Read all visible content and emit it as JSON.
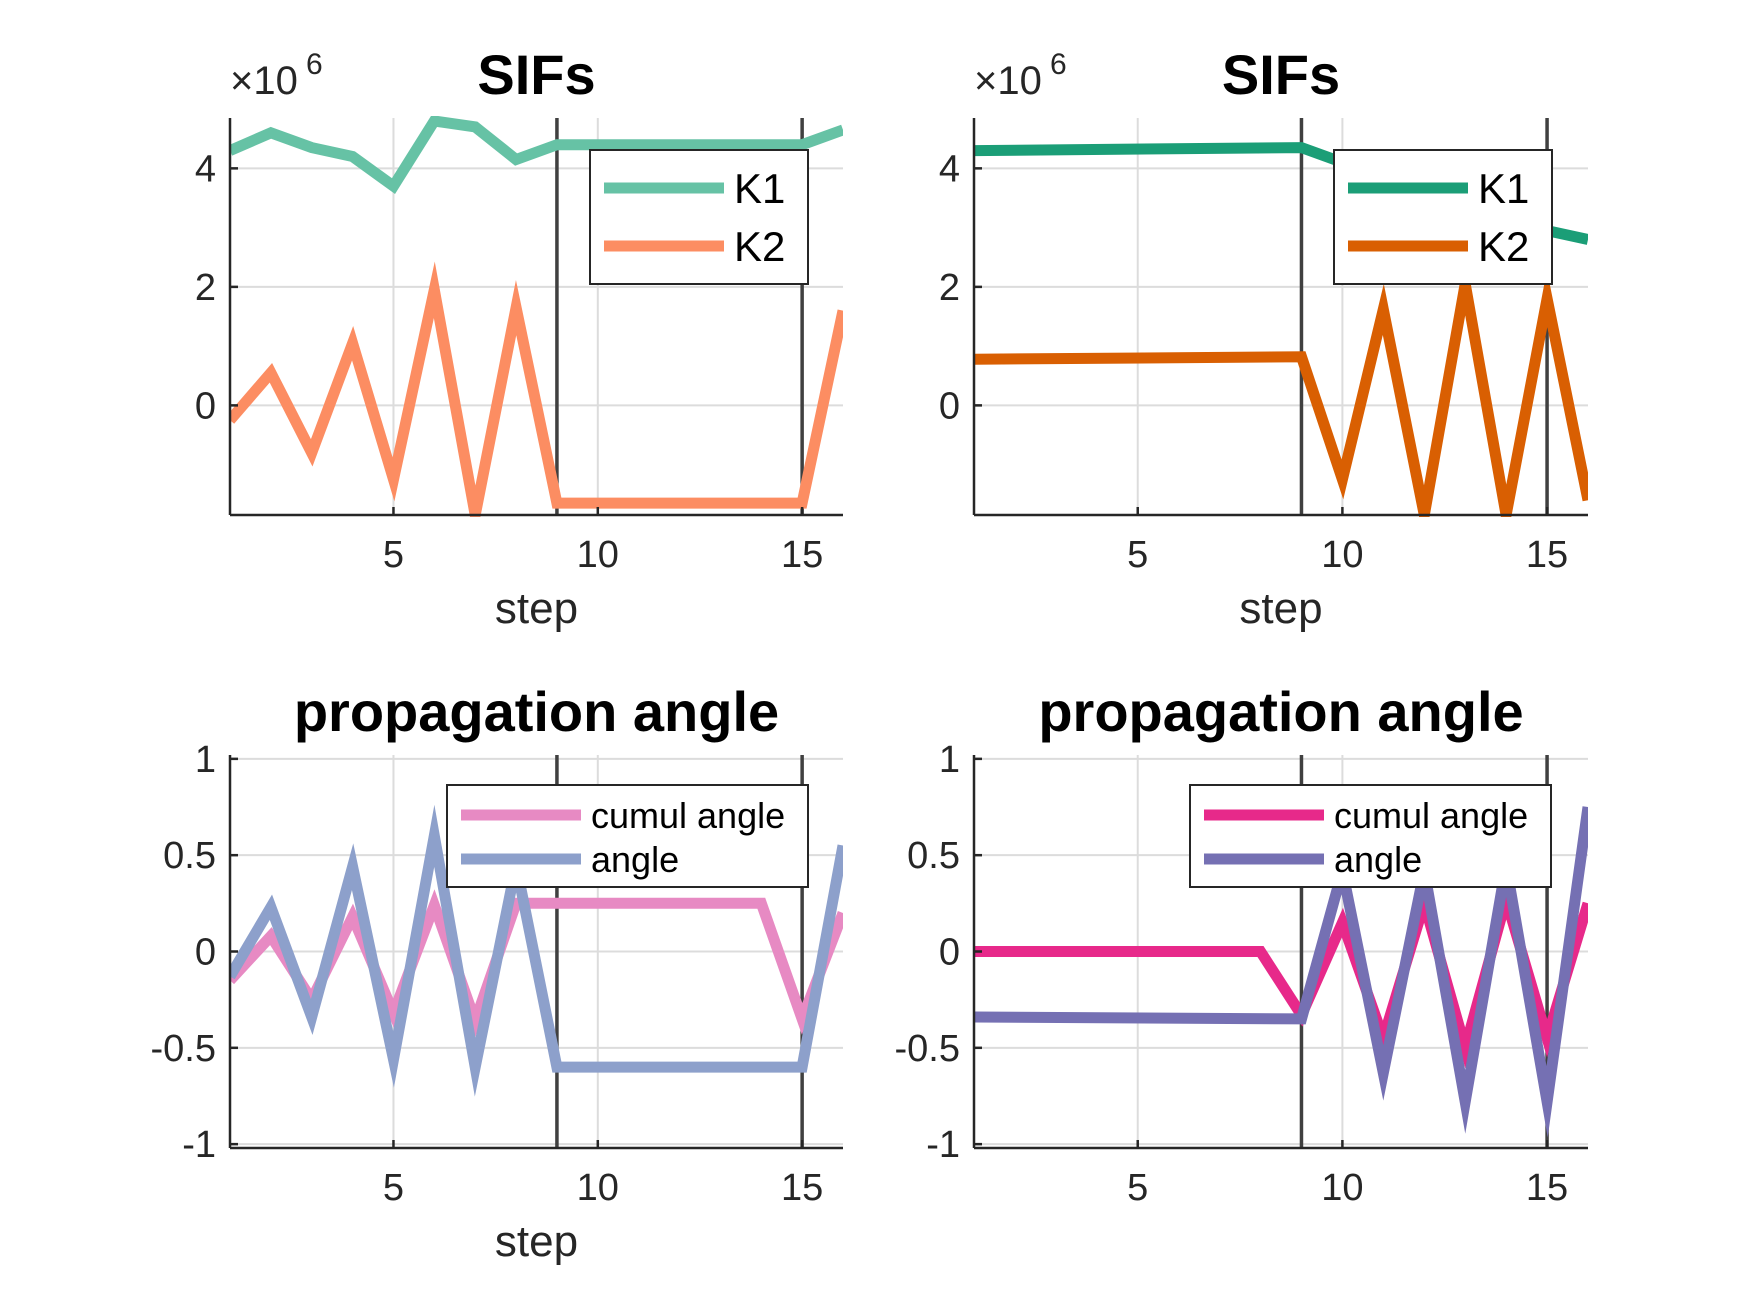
{
  "chart_data": [
    {
      "type": "line",
      "title": "SIFs",
      "xlabel": "step",
      "ylabel": "",
      "multiplier": "×10",
      "exponent": "6",
      "xlim": [
        1,
        16
      ],
      "ylim": [
        -1.85,
        4.85
      ],
      "xticks": [
        5,
        10,
        15
      ],
      "yticks": [
        0,
        2,
        4
      ],
      "vlines": [
        9,
        15
      ],
      "legend": "top-right",
      "series": [
        {
          "name": "K1",
          "color": "#66c2a5",
          "x": [
            1,
            2,
            3,
            4,
            5,
            6,
            7,
            8,
            9,
            10,
            11,
            12,
            13,
            14,
            15,
            16
          ],
          "y": [
            4.3,
            4.6,
            4.35,
            4.2,
            3.7,
            4.8,
            4.7,
            4.15,
            4.4,
            4.4,
            4.4,
            4.4,
            4.4,
            4.4,
            4.4,
            4.65
          ]
        },
        {
          "name": "K2",
          "color": "#fc8d62",
          "x": [
            1,
            2,
            3,
            4,
            5,
            6,
            7,
            8,
            9,
            10,
            11,
            12,
            13,
            14,
            15,
            16
          ],
          "y": [
            -0.25,
            0.55,
            -0.8,
            1.05,
            -1.25,
            1.95,
            -1.85,
            1.65,
            -1.65,
            -1.65,
            -1.65,
            -1.65,
            -1.65,
            -1.65,
            -1.65,
            1.6
          ]
        }
      ]
    },
    {
      "type": "line",
      "title": "SIFs",
      "xlabel": "step",
      "ylabel": "",
      "multiplier": "×10",
      "exponent": "6",
      "xlim": [
        1,
        16
      ],
      "ylim": [
        -1.85,
        4.85
      ],
      "xticks": [
        5,
        10,
        15
      ],
      "yticks": [
        0,
        2,
        4
      ],
      "vlines": [
        9,
        15
      ],
      "legend": "top-right",
      "series": [
        {
          "name": "K1",
          "color": "#1b9e77",
          "x": [
            1,
            9,
            10,
            11,
            12,
            13,
            14,
            15,
            16
          ],
          "y": [
            4.3,
            4.35,
            4.1,
            3.9,
            3.6,
            3.35,
            3.1,
            2.95,
            2.8
          ]
        },
        {
          "name": "K2",
          "color": "#d95f02",
          "x": [
            1,
            9,
            10,
            11,
            12,
            13,
            14,
            15,
            16
          ],
          "y": [
            0.78,
            0.82,
            -1.25,
            1.62,
            -1.85,
            2.05,
            -1.85,
            1.8,
            -1.6
          ]
        }
      ]
    },
    {
      "type": "line",
      "title": "propagation angle",
      "xlabel": "step",
      "ylabel": "",
      "xlim": [
        1,
        16
      ],
      "ylim": [
        -1.02,
        1.02
      ],
      "xticks": [
        5,
        10,
        15
      ],
      "yticks": [
        -1,
        -0.5,
        0,
        0.5,
        1
      ],
      "ytick_labels": [
        "-1",
        "-0.5",
        "0",
        "0.5",
        "1"
      ],
      "vlines": [
        9,
        15
      ],
      "legend": "top-right",
      "series": [
        {
          "name": "cumul angle",
          "color": "#e78ac3",
          "x": [
            1,
            2,
            3,
            4,
            5,
            6,
            7,
            8,
            9,
            10,
            11,
            12,
            13,
            14,
            15,
            16
          ],
          "y": [
            -0.15,
            0.08,
            -0.25,
            0.18,
            -0.32,
            0.24,
            -0.36,
            0.25,
            0.25,
            0.25,
            0.25,
            0.25,
            0.25,
            0.25,
            -0.35,
            0.2
          ]
        },
        {
          "name": "angle",
          "color": "#8da0cb",
          "x": [
            1,
            2,
            3,
            4,
            5,
            6,
            7,
            8,
            9,
            10,
            11,
            12,
            13,
            14,
            15,
            16
          ],
          "y": [
            -0.13,
            0.23,
            -0.34,
            0.44,
            -0.56,
            0.6,
            -0.6,
            0.45,
            -0.6,
            -0.6,
            -0.6,
            -0.6,
            -0.6,
            -0.6,
            -0.6,
            0.55
          ]
        }
      ]
    },
    {
      "type": "line",
      "title": "propagation angle",
      "xlabel": "",
      "ylabel": "",
      "xlim": [
        1,
        16
      ],
      "ylim": [
        -1.02,
        1.02
      ],
      "xticks": [
        5,
        10,
        15
      ],
      "yticks": [
        -1,
        -0.5,
        0,
        0.5,
        1
      ],
      "ytick_labels": [
        "-1",
        "-0.5",
        "0",
        "0.5",
        "1"
      ],
      "vlines": [
        9,
        15
      ],
      "legend": "top-right",
      "series": [
        {
          "name": "cumul angle",
          "color": "#e7298a",
          "x": [
            1,
            8,
            9,
            10,
            11,
            12,
            13,
            14,
            15,
            16
          ],
          "y": [
            0,
            0,
            -0.33,
            0.15,
            -0.45,
            0.25,
            -0.5,
            0.27,
            -0.45,
            0.25
          ]
        },
        {
          "name": "angle",
          "color": "#7570b3",
          "x": [
            1,
            9,
            10,
            11,
            12,
            13,
            14,
            15,
            16
          ],
          "y": [
            -0.34,
            -0.35,
            0.42,
            -0.63,
            0.42,
            -0.78,
            0.45,
            -0.78,
            0.75
          ]
        }
      ]
    }
  ]
}
